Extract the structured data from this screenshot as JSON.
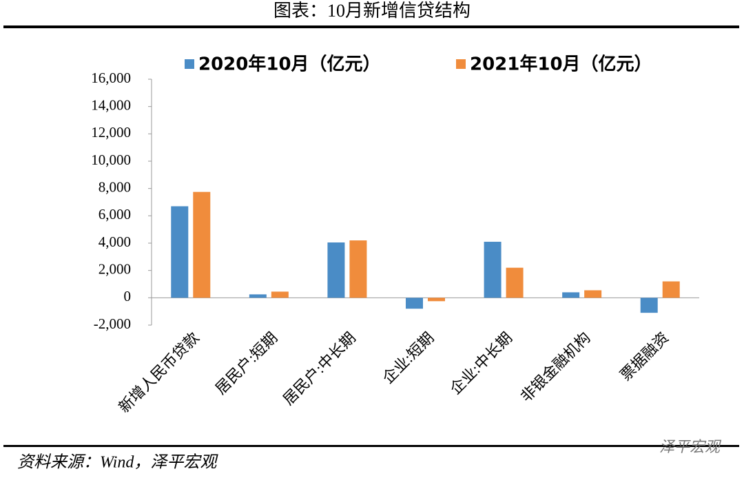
{
  "header": {
    "title": "图表：10月新增信贷结构"
  },
  "chart_data": {
    "type": "bar",
    "categories": [
      "新增人民币贷款",
      "居民户:短期",
      "居民户:中长期",
      "企业:短期",
      "企业:中长期",
      "非银金融机构",
      "票据融资"
    ],
    "series": [
      {
        "name": "2020年10月（亿元）",
        "color": "#4a8cc6",
        "values": [
          6700,
          250,
          4050,
          -800,
          4100,
          400,
          -1100
        ]
      },
      {
        "name": "2021年10月（亿元）",
        "color": "#f08c3c",
        "values": [
          7750,
          450,
          4200,
          -250,
          2200,
          550,
          1200
        ]
      }
    ],
    "ylim": [
      -2000,
      16000
    ],
    "yticks": [
      {
        "value": -2000,
        "label": "-2,000"
      },
      0,
      {
        "value": 2000,
        "label": "2,000"
      },
      {
        "value": 4000,
        "label": "4,000"
      },
      {
        "value": 6000,
        "label": "6,000"
      },
      {
        "value": 8000,
        "label": "8,000"
      },
      {
        "value": 10000,
        "label": "10,000"
      },
      {
        "value": 12000,
        "label": "12,000"
      },
      {
        "value": 14000,
        "label": "14,000"
      },
      {
        "value": 16000,
        "label": "16,000"
      }
    ],
    "grid": false
  },
  "footer": {
    "source": "资料来源：Wind，泽平宏观",
    "watermark": "泽平宏观"
  }
}
